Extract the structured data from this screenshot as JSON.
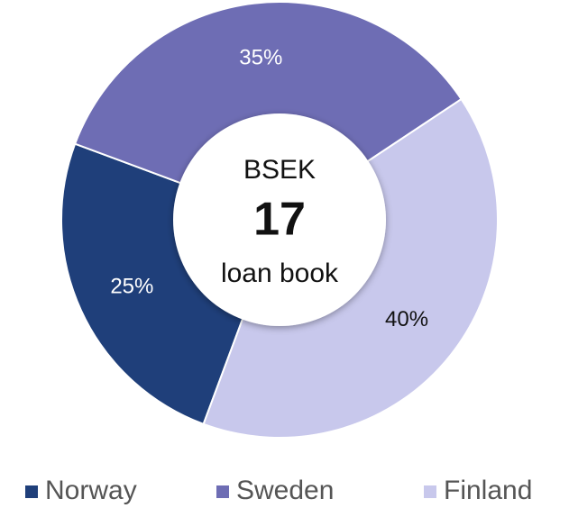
{
  "chart_data": {
    "type": "pie",
    "categories": [
      "Norway",
      "Sweden",
      "Finland"
    ],
    "values": [
      25,
      35,
      40
    ],
    "value_labels": [
      "25%",
      "35%",
      "40%"
    ],
    "colors": [
      "#1f3f7a",
      "#6e6db4",
      "#c8c8ec"
    ],
    "label_colors": [
      "#ffffff",
      "#ffffff",
      "#111111"
    ],
    "center_text": [
      "BSEK",
      "17",
      "loan book"
    ],
    "legend": "bottom"
  }
}
